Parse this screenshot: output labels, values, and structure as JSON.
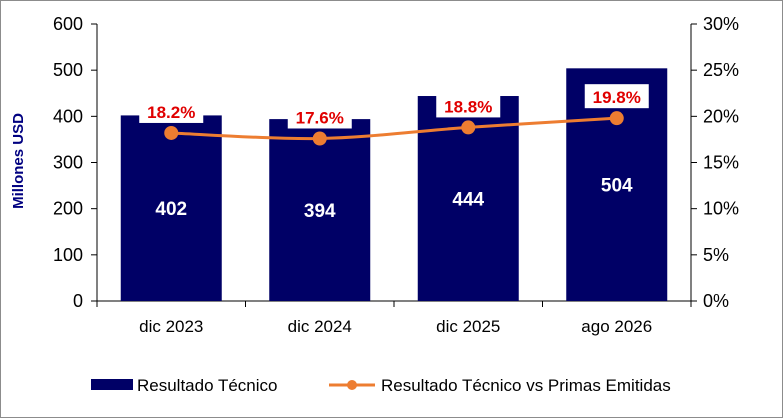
{
  "chart_data": {
    "type": "bar",
    "categories": [
      "dic 2023",
      "dic 2024",
      "dic 2025",
      "ago 2026"
    ],
    "series": [
      {
        "name": "Resultado Técnico",
        "kind": "bar",
        "axis": "left",
        "values": [
          402,
          394,
          444,
          504
        ],
        "value_labels": [
          "402",
          "394",
          "444",
          "504"
        ],
        "color": "#000066"
      },
      {
        "name": "Resultado Técnico vs Primas Emitidas",
        "kind": "line",
        "axis": "right",
        "values": [
          18.2,
          17.6,
          18.8,
          19.8
        ],
        "value_labels": [
          "18.2%",
          "17.6%",
          "18.8%",
          "19.8%"
        ],
        "color": "#ed7d31"
      }
    ],
    "ylabel": "Millones USD",
    "ylim": [
      0,
      600
    ],
    "y2lim": [
      0,
      30
    ],
    "yticks": [
      "0",
      "100",
      "200",
      "300",
      "400",
      "500",
      "600"
    ],
    "y2ticks": [
      "0%",
      "5%",
      "10%",
      "15%",
      "20%",
      "25%",
      "30%"
    ],
    "grid": false,
    "legend_position": "bottom"
  }
}
